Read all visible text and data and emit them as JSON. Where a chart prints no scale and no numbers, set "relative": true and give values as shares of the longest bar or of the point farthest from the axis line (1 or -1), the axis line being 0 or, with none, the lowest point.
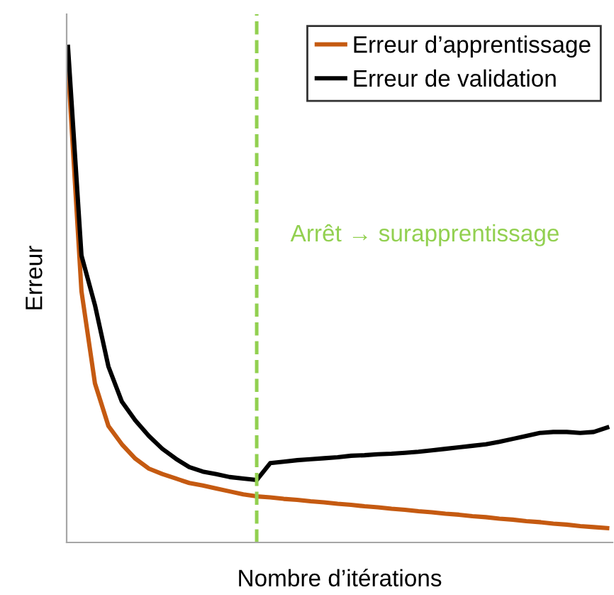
{
  "chart_data": {
    "type": "line",
    "relative": true,
    "xlabel": "Nombre d’itérations",
    "ylabel": "Erreur",
    "legend": "top right",
    "grid": false,
    "marker": "none",
    "line_style": "solid",
    "categories": [
      null,
      null,
      null,
      null,
      null,
      null,
      null,
      null,
      null,
      null,
      null,
      null,
      null,
      null,
      null,
      null,
      null,
      null,
      null,
      null,
      null,
      null,
      null,
      null,
      null,
      null,
      null,
      null,
      null,
      null,
      null,
      null,
      null,
      null,
      null,
      null,
      null,
      null,
      null,
      null,
      null
    ],
    "series": [
      {
        "name": "Erreur d’apprentissage",
        "color": "#c55a11",
        "values": [
          0.96,
          0.507,
          0.321,
          0.235,
          0.198,
          0.169,
          0.149,
          0.138,
          0.129,
          0.12,
          0.115,
          0.109,
          0.103,
          0.097,
          0.093,
          0.091,
          0.088,
          0.086,
          0.083,
          0.081,
          0.078,
          0.076,
          0.073,
          0.071,
          0.068,
          0.066,
          0.063,
          0.061,
          0.058,
          0.056,
          0.053,
          0.051,
          0.048,
          0.046,
          0.043,
          0.041,
          0.038,
          0.036,
          0.033,
          0.031,
          0.029
        ]
      },
      {
        "name": "Erreur de validation",
        "color": "#000000",
        "values": [
          1.0,
          0.579,
          0.479,
          0.355,
          0.284,
          0.246,
          0.215,
          0.189,
          0.169,
          0.152,
          0.143,
          0.138,
          0.132,
          0.129,
          0.126,
          0.16,
          0.163,
          0.166,
          0.168,
          0.17,
          0.172,
          0.175,
          0.176,
          0.178,
          0.179,
          0.181,
          0.183,
          0.186,
          0.189,
          0.192,
          0.195,
          0.198,
          0.203,
          0.209,
          0.215,
          0.221,
          0.223,
          0.223,
          0.221,
          0.223,
          0.232
        ]
      }
    ],
    "annotations": [
      "Arrêt → surapprentissage"
    ]
  }
}
